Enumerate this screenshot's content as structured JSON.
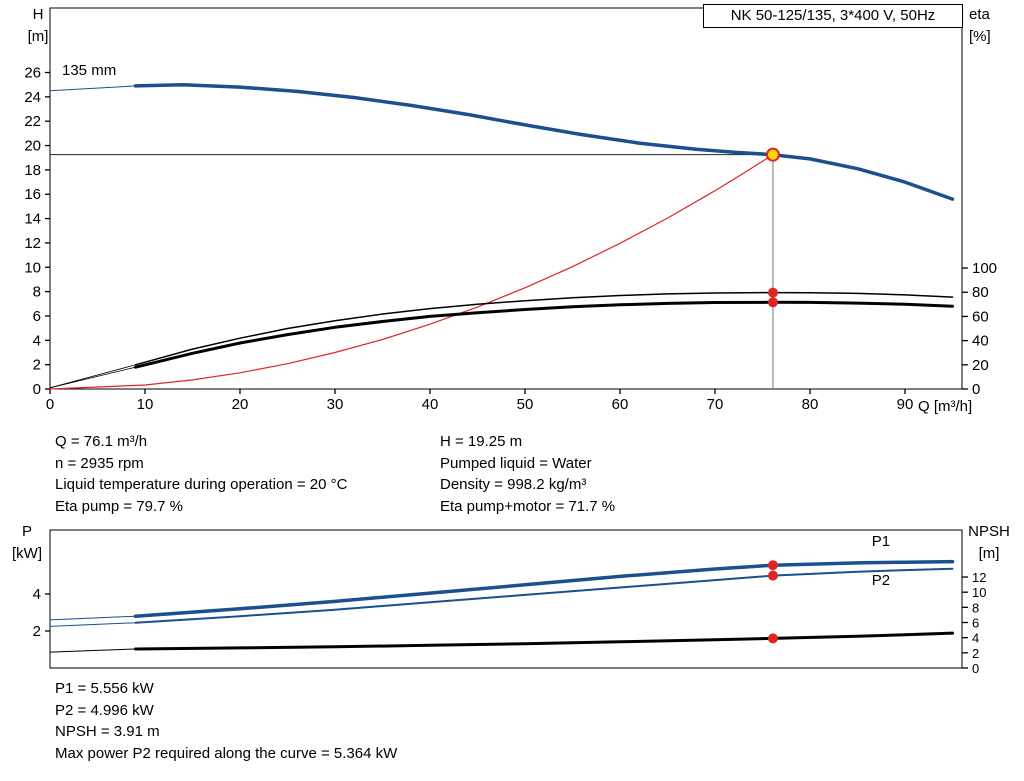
{
  "title_box": "NK 50-125/135, 3*400 V, 50Hz",
  "impeller_label": "135 mm",
  "colors": {
    "curve_blue": "#1b4f8f",
    "duty_red": "#e02424",
    "black": "#000000",
    "op_yellow": "#ffd400"
  },
  "info_top_left": [
    "Q = 76.1 m³/h",
    "n = 2935 rpm",
    "Liquid temperature during operation = 20 °C",
    "Eta pump = 79.7 %"
  ],
  "info_top_right": [
    "H = 19.25 m",
    "Pumped liquid = Water",
    "Density = 998.2 kg/m³",
    "Eta pump+motor = 71.7 %"
  ],
  "info_bottom": [
    "P1 = 5.556 kW",
    "P2 = 4.996 kW",
    "NPSH = 3.91 m",
    "Max power P2 required along the curve = 5.364 kW"
  ],
  "chart_data": [
    {
      "type": "line",
      "title": "NK 50-125/135, 3*400 V, 50Hz",
      "x": {
        "label": "Q [m³/h]",
        "min": 0,
        "max": 96,
        "ticks": [
          0,
          10,
          20,
          30,
          40,
          50,
          60,
          70,
          80,
          90
        ]
      },
      "y_left": {
        "name": "H",
        "unit": "[m]",
        "min": 0,
        "max": 31.3,
        "ticks": [
          0,
          2,
          4,
          6,
          8,
          10,
          12,
          14,
          16,
          18,
          20,
          22,
          24,
          26
        ]
      },
      "y_right": {
        "name": "eta",
        "unit": "[%]",
        "min": 0,
        "max": 315,
        "ticks": [
          0,
          20,
          40,
          60,
          80,
          100
        ]
      },
      "crosshair": {
        "q": 76.1,
        "v": 19.25
      },
      "series": [
        {
          "name": "head-curve-leadin",
          "axis": "left",
          "color": "#1b4f8f",
          "width": 1,
          "points": [
            [
              0,
              24.5
            ],
            [
              9,
              24.9
            ]
          ]
        },
        {
          "name": "head-curve-135mm",
          "axis": "left",
          "color": "#1b4f8f",
          "width": 3.5,
          "points": [
            [
              9,
              24.9
            ],
            [
              14,
              25.0
            ],
            [
              20,
              24.8
            ],
            [
              26,
              24.45
            ],
            [
              32,
              23.95
            ],
            [
              38,
              23.3
            ],
            [
              44,
              22.55
            ],
            [
              50,
              21.7
            ],
            [
              56,
              20.9
            ],
            [
              62,
              20.2
            ],
            [
              68,
              19.7
            ],
            [
              72,
              19.45
            ],
            [
              76.1,
              19.25
            ],
            [
              80,
              18.9
            ],
            [
              85,
              18.1
            ],
            [
              90,
              17.0
            ],
            [
              95,
              15.6
            ]
          ]
        },
        {
          "name": "duty-curve",
          "axis": "left",
          "color": "#e02424",
          "width": 1.2,
          "points": [
            [
              0,
              0
            ],
            [
              10,
              0.33
            ],
            [
              15,
              0.75
            ],
            [
              20,
              1.33
            ],
            [
              25,
              2.08
            ],
            [
              30,
              3.0
            ],
            [
              35,
              4.07
            ],
            [
              40,
              5.32
            ],
            [
              45,
              6.73
            ],
            [
              50,
              8.31
            ],
            [
              55,
              10.05
            ],
            [
              60,
              11.97
            ],
            [
              65,
              14.04
            ],
            [
              70,
              16.29
            ],
            [
              73,
              17.73
            ],
            [
              76.1,
              19.25
            ]
          ]
        },
        {
          "name": "eta-pump-leadin",
          "axis": "right",
          "color": "#000000",
          "width": 0.8,
          "points": [
            [
              0,
              1
            ],
            [
              9,
              20
            ]
          ]
        },
        {
          "name": "eta-pump-curve",
          "axis": "right",
          "color": "#000000",
          "width": 1.5,
          "points": [
            [
              9,
              20
            ],
            [
              15,
              33
            ],
            [
              20,
              42
            ],
            [
              25,
              50
            ],
            [
              30,
              56.5
            ],
            [
              35,
              62
            ],
            [
              40,
              66.5
            ],
            [
              45,
              70
            ],
            [
              50,
              73
            ],
            [
              55,
              75.5
            ],
            [
              60,
              77.3
            ],
            [
              65,
              78.6
            ],
            [
              70,
              79.4
            ],
            [
              76.1,
              79.7
            ],
            [
              80,
              79.6
            ],
            [
              85,
              79
            ],
            [
              90,
              77.8
            ],
            [
              95,
              76
            ]
          ]
        },
        {
          "name": "eta-pump-motor-leadin",
          "axis": "right",
          "color": "#000000",
          "width": 0.8,
          "points": [
            [
              0,
              1
            ],
            [
              9,
              18
            ]
          ]
        },
        {
          "name": "eta-pump-motor-curve",
          "axis": "right",
          "color": "#000000",
          "width": 3,
          "points": [
            [
              9,
              18
            ],
            [
              15,
              29.5
            ],
            [
              20,
              38
            ],
            [
              25,
              45
            ],
            [
              30,
              51
            ],
            [
              35,
              55.8
            ],
            [
              40,
              60
            ],
            [
              45,
              63
            ],
            [
              50,
              65.7
            ],
            [
              55,
              68
            ],
            [
              60,
              69.6
            ],
            [
              65,
              70.8
            ],
            [
              70,
              71.5
            ],
            [
              76.1,
              71.7
            ],
            [
              80,
              71.6
            ],
            [
              85,
              71
            ],
            [
              90,
              70
            ],
            [
              95,
              68.4
            ]
          ]
        }
      ],
      "markers": [
        {
          "axis": "right",
          "q": 76.1,
          "v": 79.7,
          "type": "dot",
          "name": "eta-pump-point"
        },
        {
          "axis": "right",
          "q": 76.1,
          "v": 71.7,
          "type": "dot",
          "name": "eta-pump-motor-point"
        },
        {
          "axis": "left",
          "q": 76.1,
          "v": 19.25,
          "type": "op",
          "name": "operating-point"
        }
      ]
    },
    {
      "type": "line",
      "x": {
        "label": "",
        "min": 0,
        "max": 96,
        "ticks": []
      },
      "y_left": {
        "name": "P",
        "unit": "[kW]",
        "min": 0,
        "max": 7.46,
        "ticks": [
          2,
          4
        ]
      },
      "y_right": {
        "name": "NPSH",
        "unit": "[m]",
        "min": 0,
        "max": 18.2,
        "ticks": [
          0,
          2,
          4,
          6,
          8,
          10,
          12
        ]
      },
      "series": [
        {
          "name": "p1-leadin",
          "axis": "left",
          "color": "#1b4f8f",
          "width": 1,
          "points": [
            [
              0,
              2.6
            ],
            [
              9,
              2.8
            ]
          ]
        },
        {
          "name": "p1-curve",
          "axis": "left",
          "color": "#1b4f8f",
          "width": 3.5,
          "label": "P1",
          "label_pos": [
            86.5,
            6.6
          ],
          "points": [
            [
              9,
              2.8
            ],
            [
              20,
              3.2
            ],
            [
              30,
              3.6
            ],
            [
              40,
              4.05
            ],
            [
              50,
              4.5
            ],
            [
              60,
              4.95
            ],
            [
              70,
              5.35
            ],
            [
              76.1,
              5.556
            ],
            [
              85,
              5.68
            ],
            [
              90,
              5.72
            ],
            [
              95,
              5.75
            ]
          ]
        },
        {
          "name": "p2-leadin",
          "axis": "left",
          "color": "#1b4f8f",
          "width": 1,
          "points": [
            [
              0,
              2.25
            ],
            [
              9,
              2.45
            ]
          ]
        },
        {
          "name": "p2-curve",
          "axis": "left",
          "color": "#1b4f8f",
          "width": 2,
          "label": "P2",
          "label_pos": [
            86.5,
            4.5
          ],
          "points": [
            [
              9,
              2.45
            ],
            [
              20,
              2.8
            ],
            [
              30,
              3.15
            ],
            [
              40,
              3.55
            ],
            [
              50,
              3.95
            ],
            [
              60,
              4.35
            ],
            [
              70,
              4.75
            ],
            [
              76.1,
              4.996
            ],
            [
              85,
              5.2
            ],
            [
              90,
              5.29
            ],
            [
              95,
              5.364
            ]
          ]
        },
        {
          "name": "npsh-leadin",
          "axis": "right",
          "color": "#000000",
          "width": 1,
          "points": [
            [
              0,
              2.1
            ],
            [
              9,
              2.5
            ]
          ]
        },
        {
          "name": "npsh-curve",
          "axis": "right",
          "color": "#000000",
          "width": 3,
          "points": [
            [
              9,
              2.5
            ],
            [
              20,
              2.65
            ],
            [
              30,
              2.8
            ],
            [
              40,
              3.0
            ],
            [
              50,
              3.2
            ],
            [
              60,
              3.45
            ],
            [
              70,
              3.72
            ],
            [
              76.1,
              3.91
            ],
            [
              85,
              4.2
            ],
            [
              90,
              4.38
            ],
            [
              95,
              4.6
            ]
          ]
        }
      ],
      "markers": [
        {
          "axis": "left",
          "q": 76.1,
          "v": 5.556,
          "type": "dot",
          "name": "p1-point"
        },
        {
          "axis": "left",
          "q": 76.1,
          "v": 4.996,
          "type": "dot",
          "name": "p2-point"
        },
        {
          "axis": "right",
          "q": 76.1,
          "v": 3.91,
          "type": "dot",
          "name": "npsh-point"
        }
      ]
    }
  ]
}
